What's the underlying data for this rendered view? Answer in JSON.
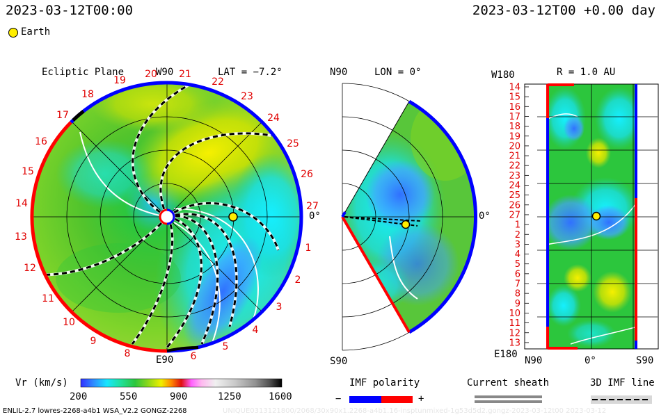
{
  "header": {
    "left_time": "2023-03-12T00:00",
    "right_time": "2023-03-12T00 +0.00 day",
    "legend_label": "Earth",
    "legend_color": "#ffee00"
  },
  "panel_ecliptic": {
    "title": "Ecliptic Plane",
    "top_axis": "W90",
    "bottom_axis": "E90",
    "right_axis": "0°",
    "lat_label": "LAT = −7.2°",
    "rotations": [
      "20",
      "21",
      "22",
      "23",
      "24",
      "25",
      "26",
      "27",
      "1",
      "2",
      "3",
      "4",
      "5",
      "6",
      "8",
      "9",
      "10",
      "11",
      "12",
      "13",
      "14",
      "15",
      "16",
      "17",
      "18",
      "19"
    ]
  },
  "panel_meridional": {
    "lon_label": "LON = 0°",
    "top_axis": "N90",
    "bottom_axis": "S90",
    "right_axis": "0°"
  },
  "panel_map": {
    "r_label": "R = 1.0 AU",
    "top_left": "W180",
    "bottom_left": "E180",
    "bottom_axis": [
      "N90",
      "0°",
      "S90"
    ],
    "rows": [
      "14",
      "15",
      "16",
      "17",
      "18",
      "19",
      "20",
      "21",
      "22",
      "23",
      "24",
      "25",
      "26",
      "27",
      "1",
      "2",
      "3",
      "4",
      "5",
      "6",
      "7",
      "8",
      "9",
      "10",
      "11",
      "12",
      "13"
    ]
  },
  "colorbar": {
    "label": "Vr (km/s)",
    "ticks": [
      "200",
      "550",
      "900",
      "1250",
      "1600"
    ],
    "colors": [
      "#3030ff",
      "#2f86ff",
      "#17e6ff",
      "#20e09a",
      "#2cc63d",
      "#85d61d",
      "#f0f000",
      "#ff8a00",
      "#e01010",
      "#ff60ff",
      "#ffb8f0",
      "#f0f0f0",
      "#c8c8c8",
      "#909090",
      "#505050",
      "#000000"
    ]
  },
  "imf": {
    "label": "IMF polarity",
    "minus": "−",
    "plus": "+",
    "neg_color": "#0000ff",
    "pos_color": "#ff0000"
  },
  "sheath": {
    "label": "Current sheath"
  },
  "imf_line": {
    "label": "3D IMF line"
  },
  "footer": {
    "left": "ENLIL-2.7 lowres-2268-a4b1 WSA_V2.2 GONGZ-2268",
    "right": "UNIQUE0313121800/2068/30x90x1.2268-a4b1.16-insptunmixed-1g53d5d2.gongz-2023-03-12t00   2023-03-12"
  }
}
